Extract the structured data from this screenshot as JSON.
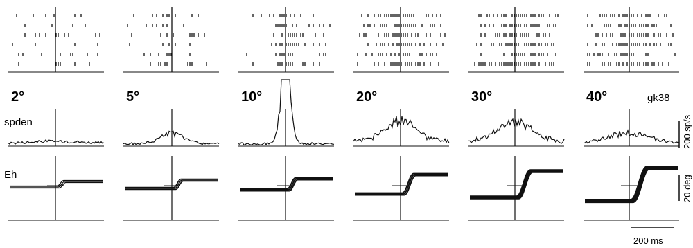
{
  "figure": {
    "id_label": "gk38",
    "row_labels": {
      "spike_density": "spden",
      "eye_position": "Eh"
    },
    "scale_bars": {
      "rate": "200 sp/s",
      "position": "20 deg",
      "time": "200 ms"
    }
  },
  "panels": [
    {
      "amplitude": "2°",
      "amp_deg": 2
    },
    {
      "amplitude": "5°",
      "amp_deg": 5
    },
    {
      "amplitude": "10°",
      "amp_deg": 10
    },
    {
      "amplitude": "20°",
      "amp_deg": 20
    },
    {
      "amplitude": "30°",
      "amp_deg": 30
    },
    {
      "amplitude": "40°",
      "amp_deg": 40
    }
  ],
  "colors": {
    "ink": "#111111",
    "background": "#ffffff"
  }
}
